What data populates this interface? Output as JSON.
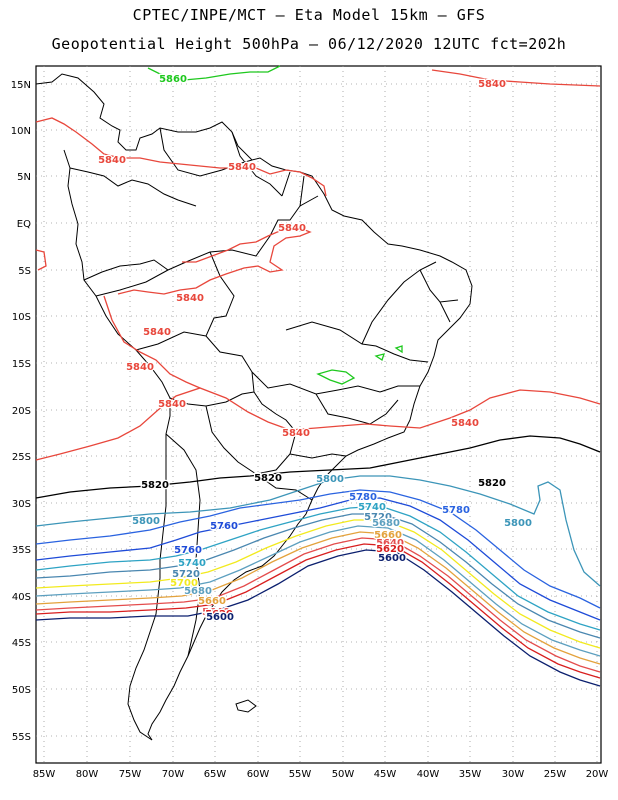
{
  "header": {
    "title_line1": "CPTEC/INPE/MCT –  Eta Model 15km – GFS",
    "title_line2": "Geopotential Height 500hPa – 06/12/2020 12UTC fct=202h"
  },
  "map": {
    "lat_labels": [
      "15N",
      "10N",
      "5N",
      "EQ",
      "5S",
      "10S",
      "15S",
      "20S",
      "25S",
      "30S",
      "35S",
      "40S",
      "45S",
      "50S",
      "55S"
    ],
    "lon_labels": [
      "85W",
      "80W",
      "75W",
      "70W",
      "65W",
      "60W",
      "55W",
      "50W",
      "45W",
      "40W",
      "35W",
      "30W",
      "25W",
      "20W"
    ],
    "grid": "dotted",
    "contour_colors": {
      "5600": "#0b1f6e",
      "5620": "#d81e1e",
      "5640": "#e44c4c",
      "5660": "#e3a23c",
      "5680": "#5c9fbf",
      "5700": "#f2ea1e",
      "5720": "#4a87b0",
      "5740": "#2ea3c4",
      "5760": "#1e4bd8",
      "5780": "#2a63e0",
      "5800": "#3c95b8",
      "5820": "#000000",
      "5840": "#e8473c",
      "5860": "#1ec81e"
    },
    "contour_labels": [
      {
        "text": "5860",
        "color": "#1ec81e"
      },
      {
        "text": "5840",
        "color": "#e8473c"
      },
      {
        "text": "5840",
        "color": "#e8473c"
      },
      {
        "text": "5840",
        "color": "#e8473c"
      },
      {
        "text": "5840",
        "color": "#e8473c"
      },
      {
        "text": "5840",
        "color": "#e8473c"
      },
      {
        "text": "5840",
        "color": "#e8473c"
      },
      {
        "text": "5840",
        "color": "#e8473c"
      },
      {
        "text": "5840",
        "color": "#e8473c"
      },
      {
        "text": "5840",
        "color": "#e8473c"
      },
      {
        "text": "5840",
        "color": "#e8473c"
      },
      {
        "text": "5820",
        "color": "#000000"
      },
      {
        "text": "5820",
        "color": "#000000"
      },
      {
        "text": "5820",
        "color": "#000000"
      },
      {
        "text": "5800",
        "color": "#3c95b8"
      },
      {
        "text": "5800",
        "color": "#3c95b8"
      },
      {
        "text": "5800",
        "color": "#3c95b8"
      },
      {
        "text": "5780",
        "color": "#2a63e0"
      },
      {
        "text": "5780",
        "color": "#2a63e0"
      },
      {
        "text": "5760",
        "color": "#1e4bd8"
      },
      {
        "text": "5760",
        "color": "#1e4bd8"
      },
      {
        "text": "5740",
        "color": "#2ea3c4"
      },
      {
        "text": "5740",
        "color": "#2ea3c4"
      },
      {
        "text": "5720",
        "color": "#4a87b0"
      },
      {
        "text": "5720",
        "color": "#4a87b0"
      },
      {
        "text": "5700",
        "color": "#f2ea1e"
      },
      {
        "text": "5680",
        "color": "#5c9fbf"
      },
      {
        "text": "5680",
        "color": "#5c9fbf"
      },
      {
        "text": "5660",
        "color": "#e3a23c"
      },
      {
        "text": "5660",
        "color": "#e3a23c"
      },
      {
        "text": "5640",
        "color": "#e44c4c"
      },
      {
        "text": "5640",
        "color": "#e44c4c"
      },
      {
        "text": "5620",
        "color": "#d81e1e"
      },
      {
        "text": "5620",
        "color": "#d81e1e"
      },
      {
        "text": "5600",
        "color": "#0b1f6e"
      },
      {
        "text": "5600",
        "color": "#0b1f6e"
      }
    ]
  }
}
